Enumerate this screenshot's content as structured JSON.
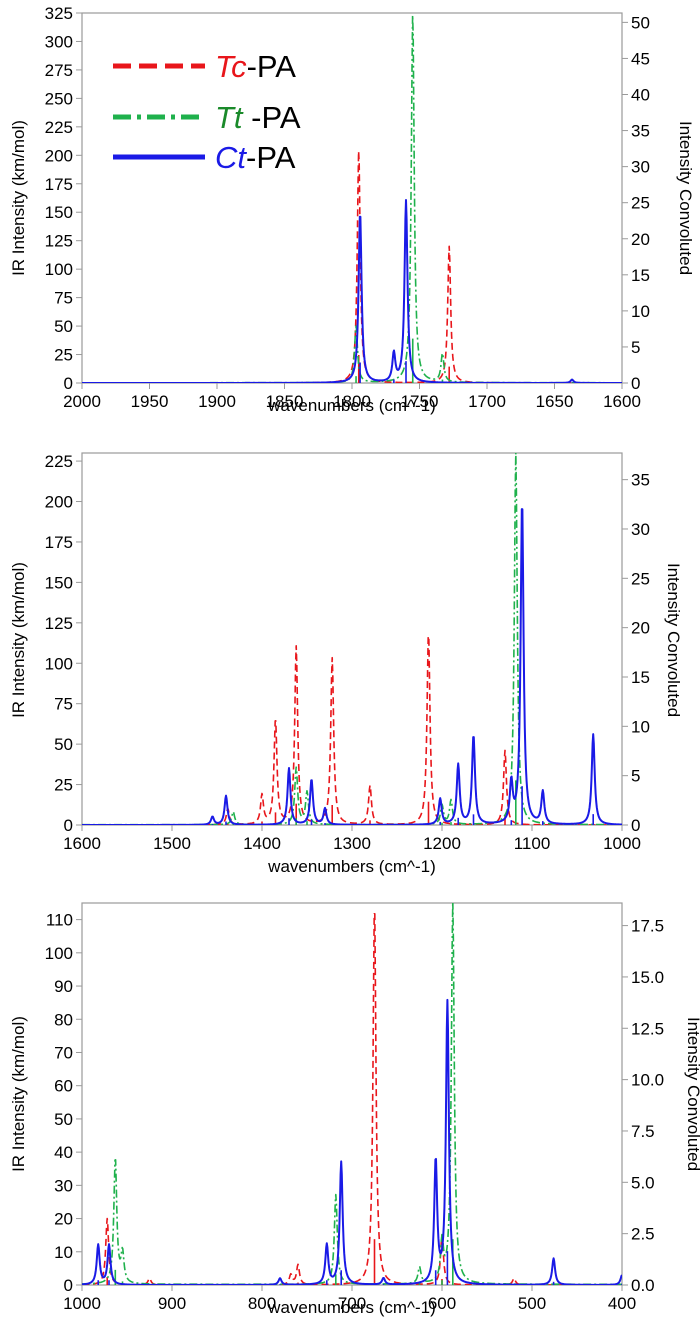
{
  "colors": {
    "Tc": "#e8161b",
    "Tt": "#1fb14c",
    "Ct": "#1a1ae6",
    "frame": "#9a9a9a"
  },
  "legend": {
    "items": [
      {
        "key": "Tc",
        "italic": "Tc",
        "rest": "-PA",
        "dash": "dash"
      },
      {
        "key": "Tt",
        "italic": "Tt",
        "rest": " -PA",
        "dash": "dashdot"
      },
      {
        "key": "Ct",
        "italic": "Ct",
        "rest": "-PA",
        "dash": "solid"
      }
    ]
  },
  "chart_data": [
    {
      "type": "line",
      "xlabel": "wavenumbers (cm^-1)",
      "ylabel": "IR Intensity (km/mol)",
      "y2label": "Intensity Convoluted",
      "xlim": [
        2000,
        1600
      ],
      "ylim": [
        0,
        325
      ],
      "y2lim": [
        0,
        51.3
      ],
      "xticks": [
        2000,
        1950,
        1900,
        1850,
        1800,
        1750,
        1700,
        1650,
        1600
      ],
      "yticks": [
        0,
        25,
        50,
        75,
        100,
        125,
        150,
        175,
        200,
        225,
        250,
        275,
        300,
        325
      ],
      "y2ticks": [
        0,
        5,
        10,
        15,
        20,
        25,
        30,
        35,
        40,
        45,
        50
      ],
      "y2tick_labels": [
        "0",
        "5",
        "10",
        "15",
        "20",
        "25",
        "30",
        "35",
        "40",
        "45",
        "50"
      ],
      "legend": "top-left",
      "series": [
        {
          "key": "Tc",
          "name": "Tc-PA",
          "peaks": [
            [
              1795,
              205
            ],
            [
              1728,
              120
            ]
          ]
        },
        {
          "key": "Tt",
          "name": "Tt -PA",
          "peaks": [
            [
              1797,
              50
            ],
            [
              1755,
              325
            ],
            [
              1733,
              25
            ]
          ]
        },
        {
          "key": "Ct",
          "name": "Ct-PA",
          "peaks": [
            [
              1794,
              150
            ],
            [
              1769,
              25
            ],
            [
              1760,
              160
            ],
            [
              1637,
              3
            ]
          ]
        }
      ]
    },
    {
      "type": "line",
      "xlabel": "wavenumbers (cm^-1)",
      "ylabel": "IR Intensity (km/mol)",
      "y2label": "Intensity Convoluted",
      "xlim": [
        1600,
        1000
      ],
      "ylim": [
        0,
        230
      ],
      "y2lim": [
        0,
        37.7
      ],
      "xticks": [
        1600,
        1500,
        1400,
        1300,
        1200,
        1100,
        1000
      ],
      "yticks": [
        0,
        25,
        50,
        75,
        100,
        125,
        150,
        175,
        200,
        225
      ],
      "y2ticks": [
        0,
        5,
        10,
        15,
        20,
        25,
        30,
        35
      ],
      "y2tick_labels": [
        "0",
        "5",
        "10",
        "15",
        "20",
        "25",
        "30",
        "35"
      ],
      "series": [
        {
          "key": "Tc",
          "name": "Tc-PA",
          "peaks": [
            [
              1438,
              10
            ],
            [
              1400,
              18
            ],
            [
              1385,
              65
            ],
            [
              1362,
              110
            ],
            [
              1322,
              103
            ],
            [
              1280,
              24
            ],
            [
              1215,
              120
            ],
            [
              1130,
              46
            ]
          ]
        },
        {
          "key": "Tt",
          "name": "Tt -PA",
          "peaks": [
            [
              1432,
              8
            ],
            [
              1362,
              35
            ],
            [
              1350,
              20
            ],
            [
              1200,
              12
            ],
            [
              1190,
              15
            ],
            [
              1118,
              230
            ]
          ]
        },
        {
          "key": "Ct",
          "name": "Ct-PA",
          "peaks": [
            [
              1455,
              5
            ],
            [
              1440,
              18
            ],
            [
              1370,
              35
            ],
            [
              1345,
              28
            ],
            [
              1330,
              10
            ],
            [
              1202,
              16
            ],
            [
              1182,
              37
            ],
            [
              1165,
              55
            ],
            [
              1123,
              25
            ],
            [
              1111,
              200
            ],
            [
              1088,
              20
            ],
            [
              1032,
              56
            ]
          ]
        }
      ]
    },
    {
      "type": "line",
      "xlabel": "wavenumbers (cm^-1)",
      "ylabel": "IR Intensity (km/mol)",
      "y2label": "Intensity Convoluted",
      "xlim": [
        1000,
        400
      ],
      "ylim": [
        0,
        115
      ],
      "y2lim": [
        0,
        18.6
      ],
      "xticks": [
        1000,
        900,
        800,
        700,
        600,
        500,
        400
      ],
      "yticks": [
        0,
        10,
        20,
        30,
        40,
        50,
        60,
        70,
        80,
        90,
        100,
        110
      ],
      "y2ticks": [
        0,
        2.5,
        5,
        7.5,
        10,
        12.5,
        15,
        17.5
      ],
      "y2tick_labels": [
        "0.0",
        "2.5",
        "5.0",
        "7.5",
        "10.0",
        "12.5",
        "15.0",
        "17.5"
      ],
      "series": [
        {
          "key": "Tc",
          "name": "Tc-PA",
          "peaks": [
            [
              972,
              20
            ],
            [
              925,
              2
            ],
            [
              768,
              3
            ],
            [
              760,
              6
            ],
            [
              675,
              115
            ],
            [
              600,
              15
            ],
            [
              520,
              2
            ]
          ]
        },
        {
          "key": "Tt",
          "name": "Tt -PA",
          "peaks": [
            [
              963,
              38
            ],
            [
              955,
              9
            ],
            [
              718,
              27
            ],
            [
              625,
              5
            ],
            [
              600,
              12
            ],
            [
              588,
              115
            ]
          ]
        },
        {
          "key": "Ct",
          "name": "Ct-PA",
          "peaks": [
            [
              982,
              12
            ],
            [
              970,
              12
            ],
            [
              780,
              2
            ],
            [
              728,
              12
            ],
            [
              712,
              37
            ],
            [
              665,
              2
            ],
            [
              607,
              37
            ],
            [
              594,
              85
            ],
            [
              476,
              8
            ],
            [
              400,
              3
            ]
          ]
        }
      ]
    }
  ]
}
